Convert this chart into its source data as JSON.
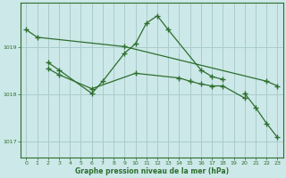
{
  "bg_color": "#cce8e8",
  "grid_color": "#aacccc",
  "line_color": "#2d6e2d",
  "xlabel": "Graphe pression niveau de la mer (hPa)",
  "xlim": [
    -0.5,
    23.5
  ],
  "ylim": [
    1016.65,
    1019.95
  ],
  "yticks": [
    1017,
    1018,
    1019
  ],
  "xticks": [
    0,
    1,
    2,
    3,
    4,
    5,
    6,
    7,
    8,
    9,
    10,
    11,
    12,
    13,
    14,
    15,
    16,
    17,
    18,
    19,
    20,
    21,
    22,
    23
  ],
  "series_full": [
    {
      "name": "line1_top_diagonal",
      "x": [
        0,
        1,
        9,
        22,
        23
      ],
      "y": [
        1019.38,
        1019.22,
        1019.02,
        1018.28,
        1018.18
      ]
    },
    {
      "name": "line2_zigzag_peak",
      "x": [
        2,
        3,
        6,
        7,
        9,
        10,
        11,
        12,
        13,
        16,
        17,
        18
      ],
      "y": [
        1018.68,
        1018.52,
        1018.02,
        1018.28,
        1018.88,
        1019.08,
        1019.52,
        1019.68,
        1019.38,
        1018.52,
        1018.38,
        1018.32
      ]
    },
    {
      "name": "line3_middle",
      "x": [
        2,
        3,
        6,
        10,
        14,
        15,
        16,
        17,
        18,
        20
      ],
      "y": [
        1018.55,
        1018.42,
        1018.12,
        1018.45,
        1018.35,
        1018.28,
        1018.22,
        1018.18,
        1018.18,
        1017.92
      ]
    },
    {
      "name": "line4_steep",
      "x": [
        20,
        21,
        22,
        23
      ],
      "y": [
        1018.02,
        1017.72,
        1017.38,
        1017.08
      ]
    }
  ]
}
